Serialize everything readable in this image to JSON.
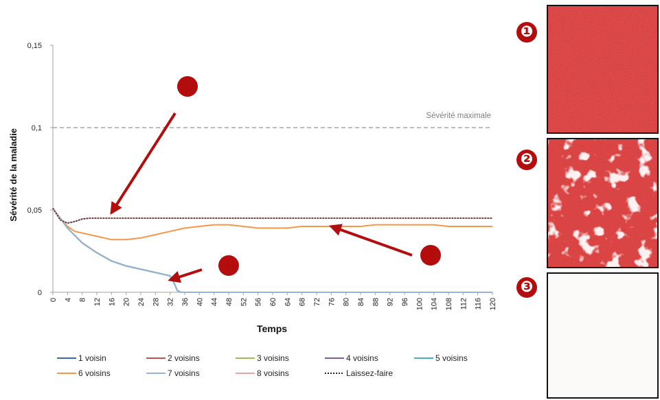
{
  "chart_data": {
    "type": "line",
    "xlabel": "Temps",
    "ylabel": "Sévérité de la maladie",
    "xlim": [
      0,
      120
    ],
    "ylim": [
      0,
      0.15
    ],
    "x_ticks": [
      0,
      4,
      8,
      12,
      16,
      20,
      24,
      28,
      32,
      36,
      40,
      44,
      48,
      52,
      56,
      60,
      64,
      68,
      72,
      76,
      80,
      84,
      88,
      92,
      96,
      100,
      104,
      108,
      112,
      116,
      120
    ],
    "y_ticks": [
      0,
      0.05,
      0.1,
      0.15
    ],
    "y_tick_labels": [
      "0",
      "0,05",
      "0,1",
      "0,15"
    ],
    "grid": false,
    "legend_position": "bottom",
    "reference_line": {
      "y": 0.1,
      "label": "Sévérité maximale",
      "color": "#a6a6a6"
    },
    "series": [
      {
        "name": "1 voisin",
        "color": "#3a67b0",
        "x": [
          0,
          2,
          4,
          8,
          12,
          16,
          20,
          24,
          28,
          32,
          33,
          34,
          35,
          36,
          120
        ],
        "y": [
          0.051,
          0.045,
          0.039,
          0.03,
          0.024,
          0.019,
          0.016,
          0.014,
          0.012,
          0.01,
          0.006,
          0.001,
          0,
          0,
          0
        ]
      },
      {
        "name": "2 voisins",
        "color": "#c0504d",
        "x": [
          0,
          2,
          4,
          8,
          12,
          16,
          20,
          24,
          28,
          32,
          33,
          34,
          35,
          36,
          120
        ],
        "y": [
          0.051,
          0.045,
          0.039,
          0.03,
          0.024,
          0.019,
          0.016,
          0.014,
          0.012,
          0.01,
          0.006,
          0.001,
          0,
          0,
          0
        ]
      },
      {
        "name": "3 voisins",
        "color": "#9bbb59",
        "x": [
          0,
          2,
          4,
          8,
          12,
          16,
          20,
          24,
          28,
          32,
          33,
          34,
          35,
          36,
          120
        ],
        "y": [
          0.051,
          0.045,
          0.039,
          0.03,
          0.024,
          0.019,
          0.016,
          0.014,
          0.012,
          0.01,
          0.006,
          0.001,
          0,
          0,
          0
        ]
      },
      {
        "name": "4 voisins",
        "color": "#7a5fa0",
        "x": [
          0,
          2,
          4,
          6,
          8,
          10,
          14,
          20,
          30,
          40,
          60,
          80,
          100,
          120
        ],
        "y": [
          0.051,
          0.044,
          0.042,
          0.043,
          0.0445,
          0.045,
          0.045,
          0.045,
          0.045,
          0.045,
          0.045,
          0.045,
          0.045,
          0.045
        ]
      },
      {
        "name": "5 voisins",
        "color": "#4bacc6",
        "x": [
          0,
          2,
          4,
          8,
          12,
          16,
          20,
          24,
          28,
          32,
          33,
          34,
          35,
          36,
          120
        ],
        "y": [
          0.051,
          0.045,
          0.039,
          0.03,
          0.024,
          0.019,
          0.016,
          0.014,
          0.012,
          0.01,
          0.006,
          0.001,
          0,
          0,
          0
        ]
      },
      {
        "name": "6 voisins",
        "color": "#f79646",
        "x": [
          0,
          2,
          4,
          6,
          8,
          12,
          16,
          20,
          24,
          28,
          32,
          36,
          40,
          44,
          48,
          52,
          56,
          60,
          64,
          68,
          72,
          76,
          80,
          84,
          88,
          92,
          96,
          100,
          104,
          108,
          112,
          116,
          120
        ],
        "y": [
          0.051,
          0.045,
          0.04,
          0.037,
          0.036,
          0.034,
          0.032,
          0.032,
          0.033,
          0.035,
          0.037,
          0.039,
          0.04,
          0.041,
          0.041,
          0.04,
          0.039,
          0.039,
          0.039,
          0.04,
          0.04,
          0.04,
          0.04,
          0.04,
          0.041,
          0.041,
          0.041,
          0.041,
          0.041,
          0.04,
          0.04,
          0.04,
          0.04
        ]
      },
      {
        "name": "7 voisins",
        "color": "#95b3d7",
        "x": [
          0,
          2,
          4,
          8,
          12,
          16,
          20,
          24,
          28,
          32,
          33,
          34,
          35,
          36,
          120
        ],
        "y": [
          0.051,
          0.045,
          0.039,
          0.03,
          0.024,
          0.019,
          0.016,
          0.014,
          0.012,
          0.01,
          0.006,
          0.001,
          0,
          0,
          0
        ]
      },
      {
        "name": "8 voisins",
        "color": "#e6a5a3",
        "x": [
          0,
          2,
          4,
          6,
          8,
          10,
          14,
          20,
          30,
          40,
          60,
          80,
          100,
          120
        ],
        "y": [
          0.051,
          0.044,
          0.042,
          0.043,
          0.0445,
          0.045,
          0.045,
          0.045,
          0.045,
          0.045,
          0.045,
          0.045,
          0.045,
          0.045
        ]
      },
      {
        "name": "Laissez-faire",
        "color": "#222222",
        "dash": true,
        "x": [
          0,
          2,
          4,
          6,
          8,
          10,
          14,
          20,
          30,
          40,
          60,
          80,
          100,
          120
        ],
        "y": [
          0.051,
          0.044,
          0.042,
          0.043,
          0.0445,
          0.045,
          0.045,
          0.045,
          0.045,
          0.045,
          0.045,
          0.045,
          0.045,
          0.045
        ]
      }
    ],
    "annotations": [
      {
        "label": "❶",
        "points_to": {
          "x": 16,
          "y": 0.045
        }
      },
      {
        "label": "❷",
        "points_to": {
          "x": 76,
          "y": 0.04
        }
      },
      {
        "label": "❸",
        "points_to": {
          "x": 32,
          "y": 0.0075
        }
      }
    ]
  },
  "panels": [
    {
      "label": "❶",
      "state": "uniform",
      "color": "#d83a3a"
    },
    {
      "label": "❷",
      "state": "patchy",
      "color": "#d83a3a"
    },
    {
      "label": "❸",
      "state": "empty",
      "color": "#fbfaf8"
    }
  ]
}
